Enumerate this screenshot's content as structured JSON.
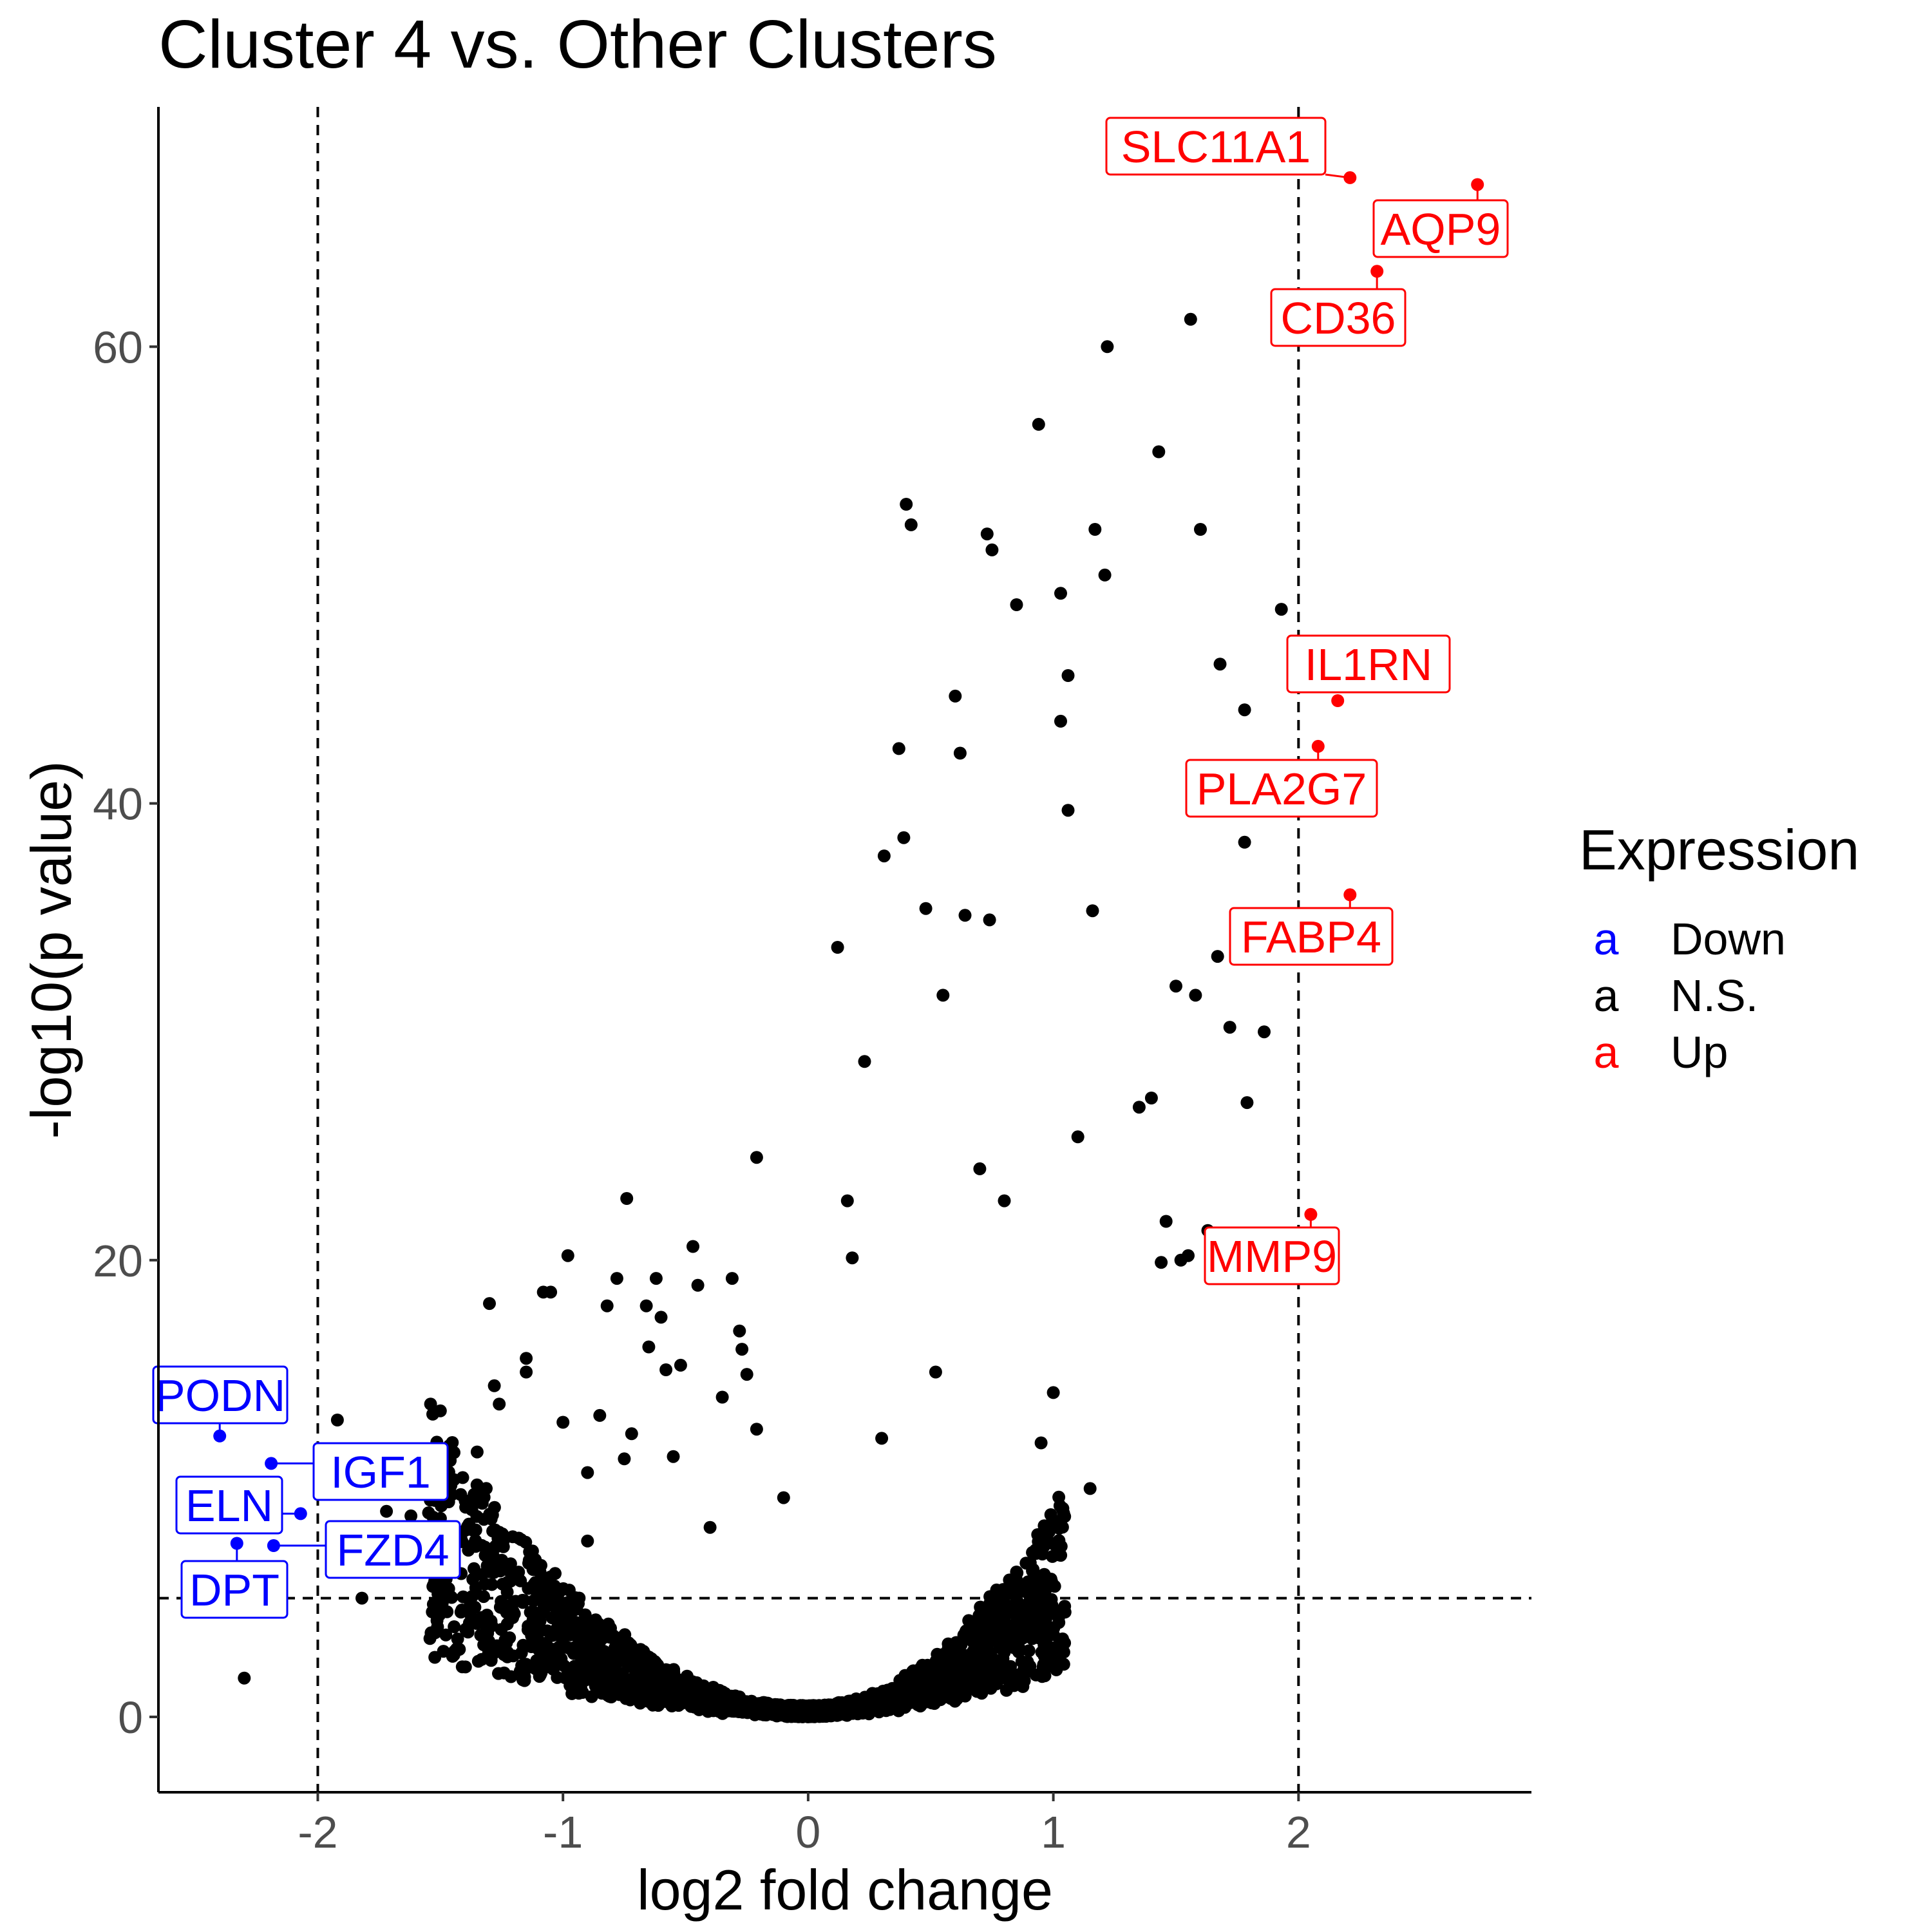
{
  "chart_data": {
    "type": "scatter",
    "title": "Cluster 4 vs. Other Clusters",
    "xlabel": "log2 fold change",
    "ylabel": "-log10(p value)",
    "xlim": [
      -2.65,
      2.95
    ],
    "ylim": [
      -3.3,
      70.5
    ],
    "x_ticks": [
      -2,
      -1,
      0,
      1,
      2
    ],
    "x_tick_labels": [
      "-2",
      "-1",
      "0",
      "1",
      "2"
    ],
    "y_ticks": [
      0,
      20,
      40,
      60
    ],
    "y_tick_labels": [
      "0",
      "20",
      "40",
      "60"
    ],
    "grid": false,
    "thresholds": {
      "log2fc": [
        -2,
        2
      ],
      "neglog10p": 5.2
    },
    "colors": {
      "Down": "#0000ff",
      "N.S.": "#000000",
      "Up": "#ff0000"
    },
    "legend": {
      "title": "Expression",
      "position": "right",
      "key_glyph": "a",
      "entries": [
        {
          "key": "Down",
          "label": "Down",
          "color": "#0000ff"
        },
        {
          "key": "N.S.",
          "label": "N.S.",
          "color": "#000000"
        },
        {
          "key": "Up",
          "label": "Up",
          "color": "#ff0000"
        }
      ]
    },
    "highlighted_points": [
      {
        "gene": "SLC11A1",
        "x": 2.21,
        "y": 67.4,
        "group": "Up"
      },
      {
        "gene": "AQP9",
        "x": 2.73,
        "y": 67.1,
        "group": "Up"
      },
      {
        "gene": "CD36",
        "x": 2.32,
        "y": 63.3,
        "group": "Up"
      },
      {
        "gene": "IL1RN",
        "x": 2.16,
        "y": 44.5,
        "group": "Up"
      },
      {
        "gene": "PLA2G7",
        "x": 2.08,
        "y": 42.5,
        "group": "Up"
      },
      {
        "gene": "FABP4",
        "x": 2.21,
        "y": 36.0,
        "group": "Up"
      },
      {
        "gene": "MMP9",
        "x": 2.05,
        "y": 22.0,
        "group": "Up"
      },
      {
        "gene": "PODN",
        "x": -2.4,
        "y": 12.3,
        "group": "Down"
      },
      {
        "gene": "IGF1",
        "x": -2.19,
        "y": 11.1,
        "group": "Down"
      },
      {
        "gene": "ELN",
        "x": -2.07,
        "y": 8.9,
        "group": "Down"
      },
      {
        "gene": "FZD4",
        "x": -2.18,
        "y": 7.5,
        "group": "Down"
      },
      {
        "gene": "DPT",
        "x": -2.33,
        "y": 7.6,
        "group": "Down"
      }
    ],
    "ns_points": [
      [
        -2.3,
        1.7
      ],
      [
        -1.92,
        13.0
      ],
      [
        -1.82,
        5.2
      ],
      [
        -1.72,
        9.0
      ],
      [
        -1.62,
        8.8
      ],
      [
        -1.54,
        13.7
      ],
      [
        -1.5,
        13.4
      ],
      [
        -1.46,
        9.7
      ],
      [
        -1.35,
        11.6
      ],
      [
        -1.3,
        18.1
      ],
      [
        -1.28,
        14.5
      ],
      [
        -1.26,
        13.7
      ],
      [
        -1.15,
        15.1
      ],
      [
        -1.15,
        15.7
      ],
      [
        -1.08,
        18.6
      ],
      [
        -1.05,
        18.6
      ],
      [
        -1.0,
        12.9
      ],
      [
        -0.98,
        20.2
      ],
      [
        -0.9,
        10.7
      ],
      [
        -0.85,
        13.2
      ],
      [
        -0.82,
        18.0
      ],
      [
        -0.78,
        19.2
      ],
      [
        -0.74,
        22.7
      ],
      [
        -0.72,
        12.4
      ],
      [
        -0.66,
        18.0
      ],
      [
        -0.65,
        16.2
      ],
      [
        -0.62,
        19.2
      ],
      [
        -0.6,
        17.5
      ],
      [
        -0.58,
        15.2
      ],
      [
        -0.52,
        15.4
      ],
      [
        -0.47,
        20.6
      ],
      [
        -0.45,
        18.9
      ],
      [
        -0.35,
        14.0
      ],
      [
        -0.31,
        19.2
      ],
      [
        -0.28,
        16.9
      ],
      [
        -0.27,
        16.1
      ],
      [
        -0.25,
        15.0
      ],
      [
        -0.21,
        12.6
      ],
      [
        -0.21,
        24.5
      ],
      [
        -0.1,
        9.6
      ],
      [
        0.12,
        33.7
      ],
      [
        0.16,
        22.6
      ],
      [
        0.18,
        20.1
      ],
      [
        0.23,
        28.7
      ],
      [
        0.31,
        37.7
      ],
      [
        0.37,
        42.4
      ],
      [
        0.39,
        38.5
      ],
      [
        0.4,
        53.1
      ],
      [
        0.42,
        52.2
      ],
      [
        0.48,
        35.4
      ],
      [
        0.55,
        31.6
      ],
      [
        0.6,
        44.7
      ],
      [
        0.62,
        42.2
      ],
      [
        0.64,
        35.1
      ],
      [
        0.73,
        51.8
      ],
      [
        0.74,
        34.9
      ],
      [
        0.75,
        51.1
      ],
      [
        0.85,
        48.7
      ],
      [
        0.94,
        56.6
      ],
      [
        1.03,
        49.2
      ],
      [
        1.03,
        43.6
      ],
      [
        1.06,
        45.6
      ],
      [
        1.06,
        39.7
      ],
      [
        1.16,
        35.3
      ],
      [
        1.17,
        52.0
      ],
      [
        1.21,
        50.0
      ],
      [
        1.22,
        60.0
      ],
      [
        1.43,
        55.4
      ],
      [
        1.56,
        61.2
      ],
      [
        1.6,
        52.0
      ],
      [
        1.68,
        46.1
      ],
      [
        1.78,
        44.1
      ],
      [
        1.78,
        38.3
      ],
      [
        1.79,
        26.9
      ],
      [
        1.86,
        30.0
      ],
      [
        1.93,
        48.5
      ],
      [
        1.5,
        32.0
      ],
      [
        1.58,
        31.6
      ],
      [
        1.67,
        33.3
      ],
      [
        1.72,
        30.2
      ],
      [
        1.52,
        20.0
      ],
      [
        1.55,
        20.2
      ],
      [
        1.63,
        21.3
      ],
      [
        1.46,
        21.7
      ],
      [
        1.44,
        19.9
      ],
      [
        1.4,
        27.1
      ],
      [
        1.35,
        26.7
      ],
      [
        1.1,
        25.4
      ],
      [
        0.8,
        22.6
      ],
      [
        0.7,
        24.0
      ],
      [
        1.0,
        14.2
      ],
      [
        0.95,
        12.0
      ],
      [
        1.15,
        10.0
      ],
      [
        0.3,
        12.2
      ],
      [
        0.52,
        15.1
      ],
      [
        -0.55,
        11.4
      ],
      [
        -0.75,
        11.3
      ],
      [
        -0.9,
        7.7
      ],
      [
        -0.4,
        8.3
      ]
    ]
  }
}
